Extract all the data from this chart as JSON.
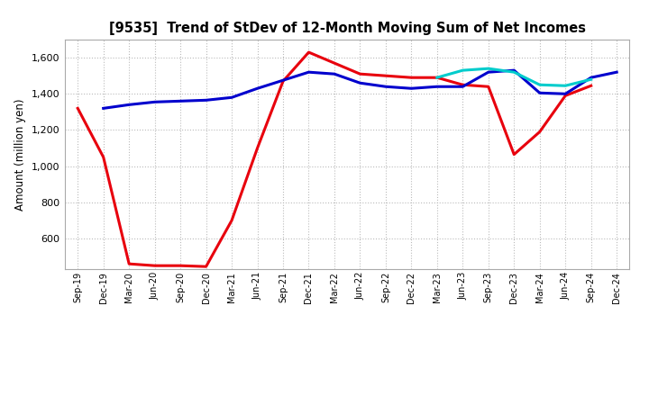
{
  "title": "[9535]  Trend of StDev of 12-Month Moving Sum of Net Incomes",
  "ylabel": "Amount (million yen)",
  "x_labels": [
    "Sep-19",
    "Dec-19",
    "Mar-20",
    "Jun-20",
    "Sep-20",
    "Dec-20",
    "Mar-21",
    "Jun-21",
    "Sep-21",
    "Dec-21",
    "Mar-22",
    "Jun-22",
    "Sep-22",
    "Dec-22",
    "Mar-23",
    "Jun-23",
    "Sep-23",
    "Dec-23",
    "Mar-24",
    "Jun-24",
    "Sep-24",
    "Dec-24"
  ],
  "series_3y": [
    1320,
    1050,
    460,
    450,
    450,
    445,
    700,
    1100,
    1470,
    1630,
    1570,
    1510,
    1500,
    1490,
    1490,
    1450,
    1440,
    1065,
    1190,
    1390,
    1445,
    null
  ],
  "series_5y": [
    null,
    1320,
    1340,
    1355,
    1360,
    1365,
    1380,
    1430,
    1475,
    1520,
    1510,
    1460,
    1440,
    1430,
    1440,
    1440,
    1520,
    1530,
    1405,
    1400,
    1490,
    1520
  ],
  "series_7y": [
    null,
    null,
    null,
    null,
    null,
    null,
    null,
    null,
    null,
    null,
    null,
    null,
    null,
    null,
    1490,
    1530,
    1540,
    1520,
    1450,
    1445,
    1480,
    null
  ],
  "series_10y": [
    null,
    null,
    null,
    null,
    null,
    null,
    null,
    null,
    null,
    null,
    null,
    null,
    null,
    null,
    null,
    null,
    null,
    null,
    null,
    null,
    null,
    null
  ],
  "color_3y": "#e8000d",
  "color_5y": "#0000cd",
  "color_7y": "#00cccc",
  "color_10y": "#008000",
  "ylim": [
    430,
    1700
  ],
  "yticks": [
    600,
    800,
    1000,
    1200,
    1400,
    1600
  ],
  "background_color": "#ffffff",
  "grid_color": "#bbbbbb"
}
